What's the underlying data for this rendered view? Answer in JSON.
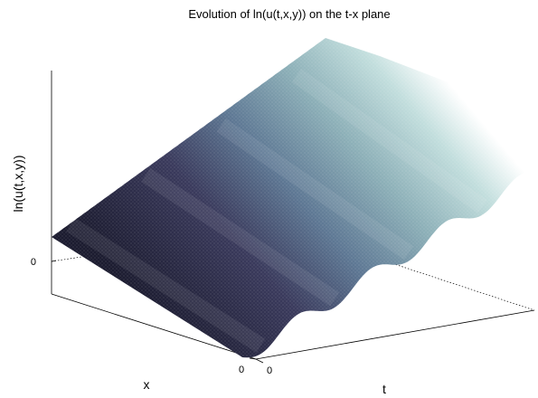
{
  "chart_data": {
    "type": "surface",
    "title": "Evolution of ln(u(t,x,y)) on the t-x plane",
    "xlabel": "t",
    "ylabel": "x",
    "zlabel": "ln(u(t,x,y))",
    "x_ticks": [
      "0"
    ],
    "y_ticks": [
      "0"
    ],
    "z_ticks": [
      "0"
    ],
    "t_range": [
      0,
      1
    ],
    "x_range": [
      0,
      1
    ],
    "z_range": [
      -0.1,
      1
    ],
    "colormap": [
      "#202036",
      "#3c3c5e",
      "#607a96",
      "#8fb0b8",
      "#c5e0df",
      "#ffffff"
    ],
    "surface_description_free": true,
    "wave_count": 4,
    "grid": false
  }
}
